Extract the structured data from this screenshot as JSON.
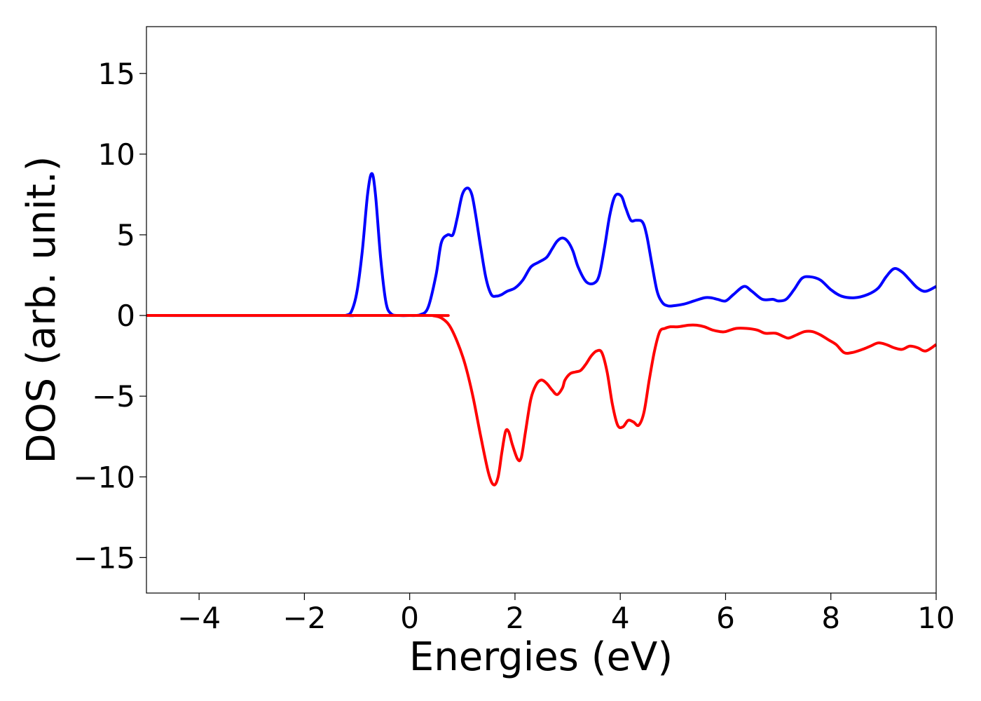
{
  "chart_data": {
    "type": "line",
    "title": "",
    "xlabel": "Energies (eV)",
    "ylabel": "DOS (arb. unit.)",
    "xlim": [
      -5,
      10
    ],
    "ylim": [
      -17.2,
      17.9
    ],
    "grid": false,
    "legend": "none",
    "x_ticks": [
      -4,
      -2,
      0,
      2,
      4,
      6,
      8,
      10
    ],
    "x_tick_labels": [
      "−4",
      "−2",
      "0",
      "2",
      "4",
      "6",
      "8",
      "10"
    ],
    "y_ticks": [
      15,
      10,
      5,
      0,
      -5,
      -10,
      -15
    ],
    "y_tick_labels": [
      "15",
      "10",
      "5",
      "0",
      "−5",
      "−10",
      "−15"
    ],
    "series": [
      {
        "color": "#0000ff",
        "x": [
          -5,
          -1.4,
          -1.2,
          -1.1,
          -1.0,
          -0.9,
          -0.8,
          -0.72,
          -0.65,
          -0.55,
          -0.45,
          -0.35,
          -0.2,
          0,
          0.2,
          0.35,
          0.5,
          0.6,
          0.72,
          0.82,
          0.9,
          1.0,
          1.1,
          1.18,
          1.25,
          1.35,
          1.45,
          1.55,
          1.65,
          1.75,
          1.85,
          2.0,
          2.15,
          2.3,
          2.45,
          2.6,
          2.7,
          2.8,
          2.9,
          3.0,
          3.1,
          3.2,
          3.35,
          3.5,
          3.6,
          3.7,
          3.8,
          3.9,
          4.02,
          4.1,
          4.2,
          4.3,
          4.42,
          4.5,
          4.6,
          4.7,
          4.8,
          4.9,
          5.0,
          5.2,
          5.4,
          5.6,
          5.72,
          5.85,
          6.0,
          6.15,
          6.35,
          6.5,
          6.7,
          6.9,
          7.0,
          7.15,
          7.3,
          7.45,
          7.6,
          7.8,
          8.0,
          8.2,
          8.45,
          8.7,
          8.9,
          9.05,
          9.2,
          9.35,
          9.5,
          9.65,
          9.8,
          10.0
        ],
        "values": [
          0,
          0,
          0.02,
          0.3,
          1.5,
          4.0,
          7.5,
          8.8,
          7.5,
          3.5,
          0.8,
          0.1,
          0,
          0,
          0.05,
          0.5,
          2.5,
          4.5,
          5.0,
          5.0,
          6.0,
          7.5,
          7.9,
          7.5,
          6.3,
          4.2,
          2.3,
          1.3,
          1.2,
          1.3,
          1.5,
          1.7,
          2.2,
          3.0,
          3.3,
          3.6,
          4.1,
          4.6,
          4.8,
          4.6,
          4.0,
          3.0,
          2.1,
          2.0,
          2.5,
          4.2,
          6.2,
          7.4,
          7.4,
          6.7,
          5.9,
          5.9,
          5.8,
          5.0,
          3.2,
          1.5,
          0.8,
          0.6,
          0.6,
          0.7,
          0.9,
          1.1,
          1.1,
          1.0,
          0.9,
          1.3,
          1.8,
          1.5,
          1.0,
          1.0,
          0.9,
          1.0,
          1.6,
          2.3,
          2.4,
          2.2,
          1.6,
          1.2,
          1.1,
          1.3,
          1.7,
          2.4,
          2.9,
          2.7,
          2.2,
          1.7,
          1.5,
          1.8
        ]
      },
      {
        "color": "#ff0000",
        "x": [
          -5,
          0.3,
          0.45,
          0.6,
          0.75,
          0.9,
          1.05,
          1.2,
          1.35,
          1.5,
          1.6,
          1.68,
          1.75,
          1.82,
          1.88,
          1.95,
          2.05,
          2.12,
          2.2,
          2.3,
          2.4,
          2.5,
          2.6,
          2.7,
          2.8,
          2.9,
          2.95,
          3.05,
          3.15,
          3.25,
          3.35,
          3.45,
          3.55,
          3.65,
          3.75,
          3.85,
          3.95,
          4.05,
          4.15,
          4.25,
          4.35,
          4.45,
          4.55,
          4.65,
          4.75,
          4.85,
          4.95,
          5.1,
          5.3,
          5.45,
          5.6,
          5.75,
          5.9,
          6.0,
          6.2,
          6.4,
          6.6,
          6.75,
          6.95,
          7.1,
          7.2,
          7.35,
          7.5,
          7.65,
          7.8,
          7.95,
          8.1,
          8.25,
          8.4,
          8.6,
          8.75,
          8.9,
          9.05,
          9.2,
          9.35,
          9.5,
          9.65,
          9.8,
          10.0
        ],
        "values": [
          0,
          0,
          -0.02,
          -0.15,
          -0.6,
          -1.6,
          -3.0,
          -5.0,
          -7.5,
          -9.8,
          -10.5,
          -10.0,
          -8.5,
          -7.2,
          -7.2,
          -8.0,
          -8.9,
          -8.8,
          -7.2,
          -5.2,
          -4.3,
          -4.0,
          -4.2,
          -4.6,
          -4.9,
          -4.5,
          -4.0,
          -3.6,
          -3.5,
          -3.4,
          -3.0,
          -2.5,
          -2.2,
          -2.3,
          -3.5,
          -5.5,
          -6.8,
          -6.9,
          -6.5,
          -6.6,
          -6.8,
          -6.0,
          -4.0,
          -2.2,
          -1.0,
          -0.8,
          -0.7,
          -0.7,
          -0.6,
          -0.6,
          -0.7,
          -0.9,
          -1.0,
          -1.0,
          -0.8,
          -0.8,
          -0.9,
          -1.1,
          -1.1,
          -1.3,
          -1.4,
          -1.2,
          -1.0,
          -1.0,
          -1.2,
          -1.5,
          -1.8,
          -2.3,
          -2.3,
          -2.1,
          -1.9,
          -1.7,
          -1.8,
          -2.0,
          -2.1,
          -1.9,
          -2.0,
          -2.2,
          -1.8
        ]
      }
    ]
  }
}
